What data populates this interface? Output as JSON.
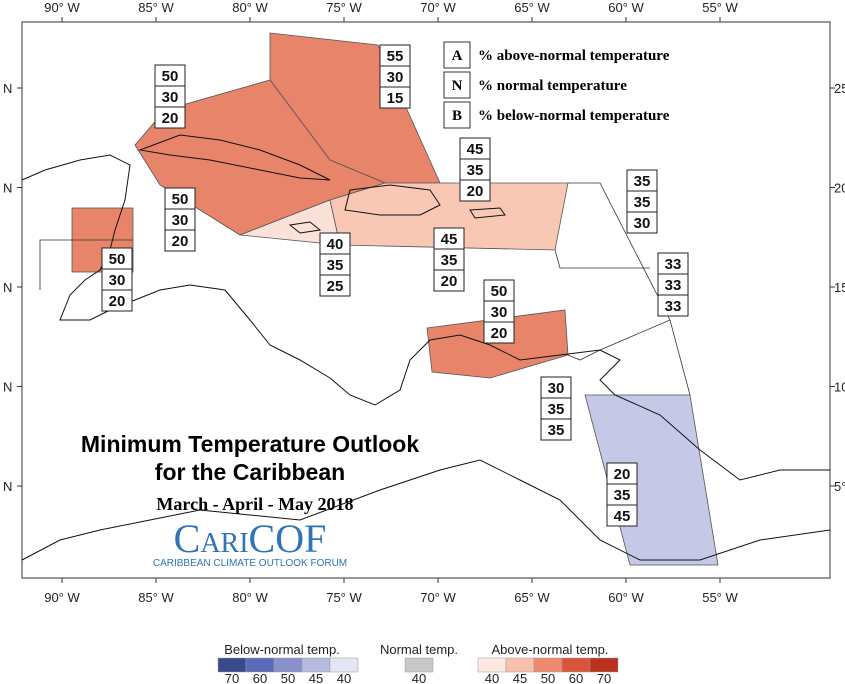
{
  "longitude_labels_top": [
    "90° W",
    "85° W",
    "80° W",
    "75° W",
    "70° W",
    "65° W",
    "60° W",
    "55° W"
  ],
  "longitude_labels_bottom": [
    "90° W",
    "85° W",
    "80° W",
    "75° W",
    "70° W",
    "65° W",
    "60° W",
    "55° W"
  ],
  "latitude_labels_left": [
    "N",
    "N",
    "N",
    "N",
    "N"
  ],
  "latitude_labels_right": [
    "25°",
    "20°",
    "15°",
    "10°",
    "5°"
  ],
  "key": [
    {
      "letter": "A",
      "text": "% above-normal temperature"
    },
    {
      "letter": "N",
      "text": "% normal temperature"
    },
    {
      "letter": "B",
      "text": "% below-normal temperature"
    }
  ],
  "regions": [
    {
      "values": [
        55,
        30,
        15
      ]
    },
    {
      "values": [
        50,
        30,
        20
      ]
    },
    {
      "values": [
        45,
        35,
        20
      ]
    },
    {
      "values": [
        35,
        35,
        30
      ]
    },
    {
      "values": [
        50,
        30,
        20
      ]
    },
    {
      "values": [
        40,
        35,
        25
      ]
    },
    {
      "values": [
        45,
        35,
        20
      ]
    },
    {
      "values": [
        50,
        30,
        20
      ]
    },
    {
      "values": [
        33,
        33,
        33
      ]
    },
    {
      "values": [
        50,
        30,
        20
      ]
    },
    {
      "values": [
        30,
        35,
        35
      ]
    },
    {
      "values": [
        20,
        35,
        45
      ]
    }
  ],
  "title": {
    "line1": "Minimum Temperature Outlook",
    "line2": "for the Caribbean",
    "period": "March - April - May 2018"
  },
  "logo": {
    "name": "CariCOF",
    "tagline": "CARIBBEAN CLIMATE OUTLOOK FORUM"
  },
  "color_legend": {
    "below": {
      "label": "Below-normal temp.",
      "ticks": [
        70,
        60,
        50,
        45,
        40
      ]
    },
    "normal": {
      "label": "Normal temp.",
      "ticks": [
        40
      ]
    },
    "above": {
      "label": "Above-normal temp.",
      "ticks": [
        40,
        45,
        50,
        60,
        70
      ]
    }
  }
}
